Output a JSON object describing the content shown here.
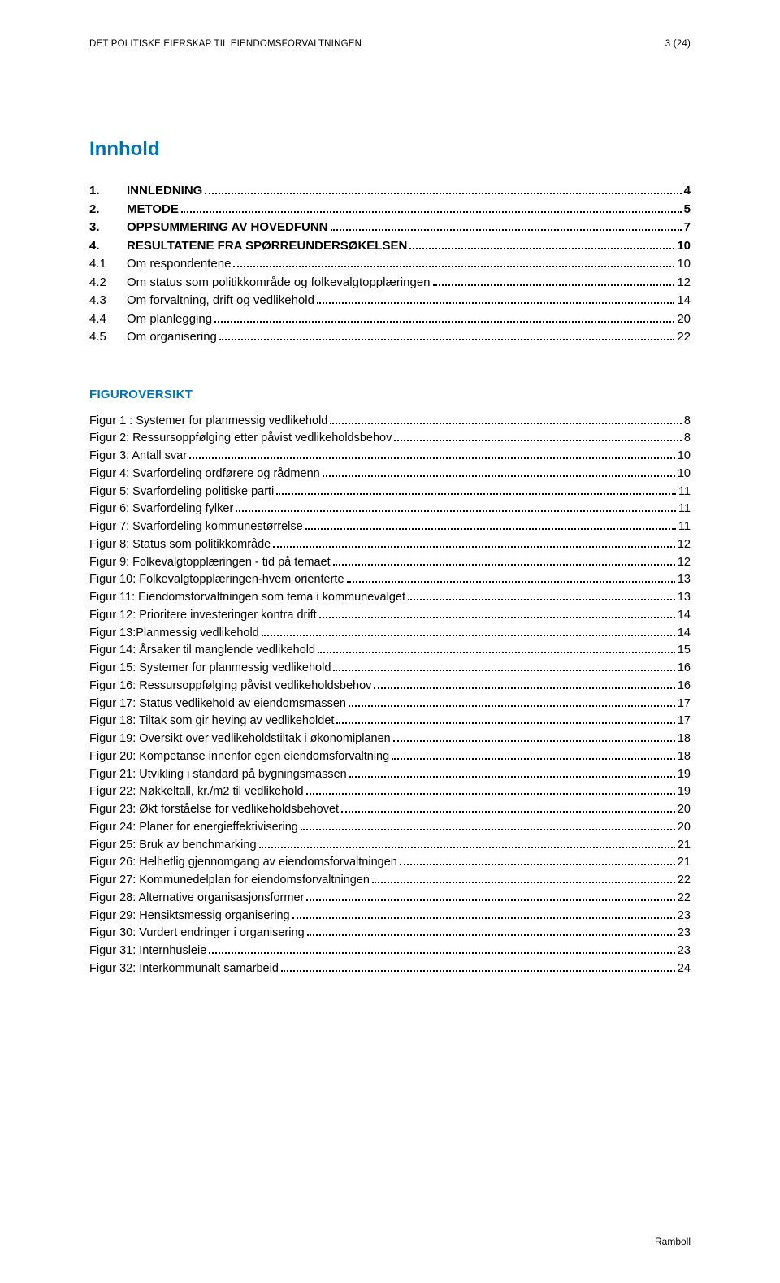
{
  "header": {
    "left": "DET POLITISKE EIERSKAP TIL EIENDOMSFORVALTNINGEN",
    "right": "3 (24)"
  },
  "innhold_title": "Innhold",
  "toc": [
    {
      "num": "1.",
      "label": "INNLEDNING",
      "page": "4",
      "bold": true,
      "minor": false
    },
    {
      "num": "2.",
      "label": "METODE",
      "page": "5",
      "bold": true,
      "minor": false
    },
    {
      "num": "3.",
      "label": "OPPSUMMERING AV HOVEDFUNN",
      "page": "7",
      "bold": true,
      "minor": false
    },
    {
      "num": "4.",
      "label": "RESULTATENE FRA SPØRREUNDERSØKELSEN",
      "page": "10",
      "bold": true,
      "minor": false
    },
    {
      "num": "4.1",
      "label": "Om respondentene",
      "page": "10",
      "bold": false,
      "minor": true
    },
    {
      "num": "4.2",
      "label": "Om status som politikkområde og  folkevalgtopplæringen",
      "page": "12",
      "bold": false,
      "minor": true
    },
    {
      "num": "4.3",
      "label": "Om forvaltning, drift og vedlikehold",
      "page": "14",
      "bold": false,
      "minor": true
    },
    {
      "num": "4.4",
      "label": "Om planlegging",
      "page": "20",
      "bold": false,
      "minor": true
    },
    {
      "num": "4.5",
      "label": "Om organisering",
      "page": "22",
      "bold": false,
      "minor": true
    }
  ],
  "fig_title": "FIGUROVERSIKT",
  "figures": [
    {
      "label": "Figur 1 : Systemer for planmessig vedlikehold",
      "page": "8"
    },
    {
      "label": "Figur 2: Ressursoppfølging etter påvist vedlikeholdsbehov",
      "page": "8"
    },
    {
      "label": "Figur 3: Antall svar",
      "page": "10"
    },
    {
      "label": "Figur 4: Svarfordeling ordførere og rådmenn",
      "page": "10"
    },
    {
      "label": "Figur 5: Svarfordeling politiske parti",
      "page": "11"
    },
    {
      "label": "Figur 6: Svarfordeling fylker",
      "page": "11"
    },
    {
      "label": "Figur 7: Svarfordeling kommunestørrelse",
      "page": "11"
    },
    {
      "label": "Figur 8: Status som politikkområde",
      "page": "12"
    },
    {
      "label": "Figur 9: Folkevalgtopplæringen - tid på temaet",
      "page": "12"
    },
    {
      "label": "Figur 10: Folkevalgtopplæringen-hvem orienterte",
      "page": "13"
    },
    {
      "label": "Figur 11: Eiendomsforvaltningen som tema i kommunevalget",
      "page": "13"
    },
    {
      "label": "Figur 12: Prioritere investeringer kontra drift",
      "page": "14"
    },
    {
      "label": "Figur 13:Planmessig vedlikehold",
      "page": "14"
    },
    {
      "label": "Figur 14: Årsaker til manglende vedlikehold",
      "page": "15"
    },
    {
      "label": "Figur 15: Systemer for planmessig vedlikehold",
      "page": "16"
    },
    {
      "label": "Figur 16: Ressursoppfølging påvist vedlikeholdsbehov",
      "page": "16"
    },
    {
      "label": "Figur 17: Status vedlikehold av eiendomsmassen",
      "page": "17"
    },
    {
      "label": "Figur 18: Tiltak som gir heving av vedlikeholdet",
      "page": "17"
    },
    {
      "label": "Figur 19: Oversikt over vedlikeholdstiltak i økonomiplanen",
      "page": "18"
    },
    {
      "label": "Figur 20: Kompetanse innenfor egen eiendomsforvaltning",
      "page": "18"
    },
    {
      "label": "Figur 21: Utvikling i standard på bygningsmassen",
      "page": "19"
    },
    {
      "label": "Figur 22: Nøkkeltall, kr./m2 til vedlikehold",
      "page": "19"
    },
    {
      "label": "Figur 23: Økt forståelse for vedlikeholdsbehovet",
      "page": "20"
    },
    {
      "label": "Figur 24: Planer for energieffektivisering",
      "page": "20"
    },
    {
      "label": "Figur 25: Bruk av benchmarking",
      "page": "21"
    },
    {
      "label": "Figur 26: Helhetlig gjennomgang av eiendomsforvaltningen",
      "page": "21"
    },
    {
      "label": "Figur 27: Kommunedelplan for eiendomsforvaltningen",
      "page": "22"
    },
    {
      "label": "Figur 28: Alternative organisasjonsformer",
      "page": "22"
    },
    {
      "label": "Figur 29: Hensiktsmessig organisering",
      "page": "23"
    },
    {
      "label": "Figur 30: Vurdert endringer i organisering",
      "page": "23"
    },
    {
      "label": "Figur 31: Internhusleie",
      "page": "23"
    },
    {
      "label": "Figur 32: Interkommunalt samarbeid",
      "page": "24"
    }
  ],
  "footer": "Ramboll"
}
